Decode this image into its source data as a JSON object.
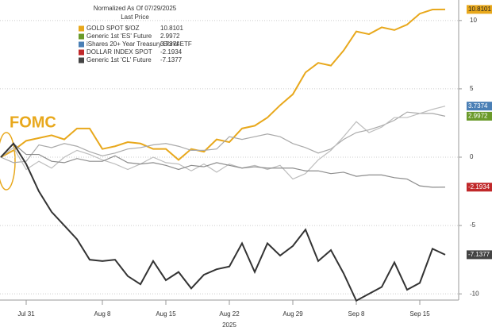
{
  "chart_data": {
    "type": "line",
    "legend_title": "Normalized As Of 07/29/2025",
    "legend_subtitle": "Last Price",
    "annotation": "FOMC",
    "year_label": "2025",
    "categories": [
      null,
      null,
      "Jul 31",
      null,
      null,
      null,
      null,
      null,
      "Aug 8",
      null,
      null,
      null,
      null,
      "Aug 15",
      null,
      null,
      null,
      null,
      "Aug 22",
      null,
      null,
      null,
      null,
      "Aug 29",
      null,
      null,
      null,
      null,
      "Sep 8",
      null,
      null,
      null,
      null,
      "Sep 15",
      null,
      null
    ],
    "series": [
      {
        "name": "GOLD SPOT $/OZ",
        "color": "#e8a81c",
        "line_color": "#e8a81c",
        "values": [
          0,
          0.5,
          1.2,
          1.4,
          1.6,
          1.3,
          2.1,
          2.1,
          0.6,
          0.8,
          1.1,
          1.0,
          0.6,
          0.6,
          -0.2,
          0.6,
          0.4,
          1.3,
          1.1,
          2.1,
          2.3,
          2.9,
          3.8,
          4.6,
          6.2,
          6.9,
          6.7,
          7.8,
          9.2,
          9.0,
          9.5,
          9.3,
          9.7,
          10.5,
          10.8,
          10.8101
        ]
      },
      {
        "name": "Generic 1st 'ES' Future",
        "color": "#6a9a2a",
        "line_color": "#a9a9a9",
        "values": [
          0,
          -0.4,
          -0.3,
          0.9,
          0.7,
          1.0,
          0.8,
          0.4,
          0.1,
          0.3,
          0.6,
          0.7,
          0.9,
          1.0,
          0.8,
          0.5,
          0.5,
          0.6,
          1.5,
          1.3,
          1.5,
          1.7,
          1.5,
          1.0,
          0.7,
          0.3,
          0.6,
          1.3,
          1.8,
          2.0,
          2.3,
          2.7,
          3.3,
          3.2,
          3.2,
          2.9972
        ]
      },
      {
        "name": "iShares 20+ Year Treasury Bond ETF",
        "color": "#4a7fb5",
        "line_color": "#bdbdbd",
        "values": [
          0,
          0.7,
          -0.9,
          -0.3,
          -0.8,
          0,
          0.5,
          0.2,
          -0.2,
          -0.5,
          -0.9,
          -0.5,
          0,
          -0.4,
          -0.5,
          -1.0,
          -0.5,
          -1.1,
          -0.5,
          -0.8,
          -0.6,
          -0.9,
          -0.6,
          -1.6,
          -1.2,
          -0.2,
          0.5,
          1.5,
          2.6,
          1.8,
          2.2,
          2.9,
          2.9,
          3.2,
          3.5,
          3.7374
        ]
      },
      {
        "name": "DOLLAR INDEX SPOT",
        "color": "#c0282a",
        "line_color": "#8c8c8c",
        "values": [
          0,
          1.0,
          0.2,
          0.2,
          -0.3,
          -0.4,
          -0.1,
          -0.3,
          -0.3,
          0.1,
          -0.4,
          -0.5,
          -0.4,
          -0.6,
          -0.9,
          -0.6,
          -0.7,
          -0.4,
          -0.6,
          -0.8,
          -0.7,
          -0.8,
          -0.8,
          -0.8,
          -1.0,
          -1.0,
          -1.2,
          -1.1,
          -1.4,
          -1.3,
          -1.3,
          -1.5,
          -1.6,
          -2.1,
          -2.2,
          -2.1934
        ]
      },
      {
        "name": "Generic 1st 'CL' Future",
        "color": "#444444",
        "line_color": "#333333",
        "values": [
          0,
          1,
          -0.5,
          -2.5,
          -4,
          -5,
          -6,
          -7.5,
          -7.6,
          -7.5,
          -8.7,
          -9.3,
          -7.6,
          -9,
          -8.4,
          -9.6,
          -8.6,
          -8.2,
          -8,
          -6.3,
          -8.4,
          -6.3,
          -7.2,
          -6.5,
          -5.3,
          -7.6,
          -6.8,
          -8.5,
          -10.5,
          -10,
          -9.5,
          -7.7,
          -9.7,
          -9.2,
          -6.7,
          -7.1377
        ]
      }
    ],
    "ylim": [
      -11.5,
      11.5
    ],
    "yticks": [
      10,
      5,
      0,
      -5,
      -10
    ],
    "grid": true
  }
}
